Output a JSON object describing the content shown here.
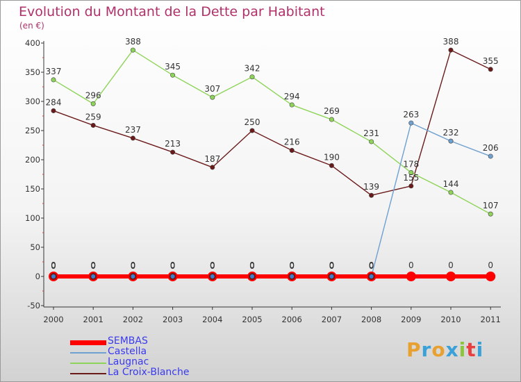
{
  "chart_title": "Evolution du Montant de la Dette par Habitant",
  "chart_unit": "(en €)",
  "logo_text": "Proxiti",
  "chart_data": {
    "type": "line",
    "title": "Evolution du Montant de la Dette par Habitant",
    "ylabel": "(en €)",
    "x": [
      "2000",
      "2001",
      "2002",
      "2003",
      "2004",
      "2005",
      "2006",
      "2007",
      "2008",
      "2009",
      "2010",
      "2011"
    ],
    "ylim": [
      -50,
      400
    ],
    "yticks": [
      "-50",
      "0",
      "50",
      "100",
      "150",
      "200",
      "250",
      "300",
      "350",
      "400"
    ],
    "grid": false,
    "legend": "bottom-left",
    "series": [
      {
        "name": "SEMBAS",
        "color": "#ff0000",
        "values": [
          0,
          0,
          0,
          0,
          0,
          0,
          0,
          0,
          0,
          0,
          0,
          0
        ]
      },
      {
        "name": "Castella",
        "color": "#6ea0d0",
        "values": [
          0,
          0,
          0,
          0,
          0,
          0,
          0,
          0,
          0,
          263,
          232,
          206
        ]
      },
      {
        "name": "Laugnac",
        "color": "#8fd45a",
        "values": [
          337,
          296,
          388,
          345,
          307,
          342,
          294,
          269,
          231,
          178,
          144,
          107
        ]
      },
      {
        "name": "La Croix-Blanche",
        "color": "#6b1a1a",
        "values": [
          284,
          259,
          237,
          213,
          187,
          250,
          216,
          190,
          139,
          155,
          388,
          355
        ]
      }
    ]
  }
}
